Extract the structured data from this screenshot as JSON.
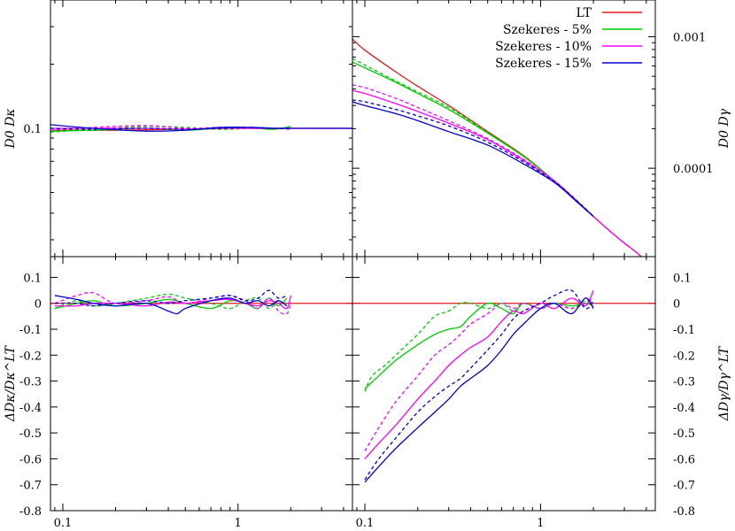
{
  "chart_data": [
    {
      "panel": "top-left",
      "type": "line",
      "ylabel": "D0 Dκ",
      "xscale": "log",
      "yscale": "log",
      "xlim": [
        0.085,
        4.5
      ],
      "ylim": [
        0.025,
        0.4
      ],
      "xticks": [],
      "yticks": [
        "0.1"
      ],
      "series": [
        {
          "name": "LT",
          "style": "solid",
          "color": "#e41a1c",
          "x": [
            0.085,
            0.2,
            0.5,
            1.0,
            2.0,
            4.5
          ],
          "y": [
            0.098,
            0.098,
            0.099,
            0.1,
            0.1,
            0.1
          ]
        },
        {
          "name": "Szekeres - 5%",
          "style": "solid",
          "color": "#00cc00",
          "x": [
            0.085,
            0.15,
            0.3,
            0.5,
            0.8,
            1.2,
            1.6,
            2.0
          ],
          "y": [
            0.097,
            0.098,
            0.1,
            0.098,
            0.1,
            0.1,
            0.099,
            0.102
          ]
        },
        {
          "style": "dashed",
          "color": "#00cc00",
          "x": [
            0.085,
            0.15,
            0.3,
            0.5,
            0.8,
            1.2,
            1.6,
            2.0
          ],
          "y": [
            0.096,
            0.099,
            0.102,
            0.101,
            0.099,
            0.1,
            0.1,
            0.099
          ]
        },
        {
          "name": "Szekeres - 10%",
          "style": "solid",
          "color": "#ff00ff",
          "x": [
            0.085,
            0.15,
            0.3,
            0.5,
            0.8,
            1.2,
            1.6,
            2.0,
            3.0,
            4.5
          ],
          "y": [
            0.1,
            0.1,
            0.1,
            0.099,
            0.1,
            0.1,
            0.1,
            0.1,
            0.1,
            0.1
          ]
        },
        {
          "style": "dashed",
          "color": "#ff00ff",
          "x": [
            0.085,
            0.15,
            0.3,
            0.5,
            0.8,
            1.2,
            1.6,
            2.0
          ],
          "y": [
            0.098,
            0.101,
            0.103,
            0.1,
            0.101,
            0.1,
            0.1,
            0.099
          ]
        },
        {
          "name": "Szekeres - 15%",
          "style": "solid",
          "color": "#0000cc",
          "x": [
            0.085,
            0.15,
            0.3,
            0.5,
            0.8,
            1.2,
            1.6,
            2.0,
            3.0,
            4.5
          ],
          "y": [
            0.104,
            0.1,
            0.097,
            0.098,
            0.101,
            0.101,
            0.1,
            0.1,
            0.1,
            0.1
          ]
        },
        {
          "style": "dashed",
          "color": "#0000cc",
          "x": [
            0.085,
            0.15,
            0.3,
            0.5,
            0.8,
            1.2,
            1.6,
            2.0
          ],
          "y": [
            0.1,
            0.099,
            0.1,
            0.099,
            0.1,
            0.101,
            0.1,
            0.1
          ]
        }
      ]
    },
    {
      "panel": "top-right",
      "type": "line",
      "ylabel": "D0 Dγ",
      "xscale": "log",
      "yscale": "log",
      "xlim": [
        0.085,
        4.5
      ],
      "ylim": [
        2.13e-05,
        0.0019
      ],
      "xticks": [],
      "yticks": [
        "0.001",
        "0.0001"
      ],
      "legend": {
        "position": "top-right",
        "entries": [
          "LT",
          "Szekeres - 5%",
          "Szekeres - 10%",
          "Szekeres - 15%"
        ],
        "colors": [
          "#e41a1c",
          "#00cc00",
          "#ff00ff",
          "#0000cc"
        ]
      },
      "series": [
        {
          "name": "LT",
          "style": "solid",
          "color": "#e41a1c",
          "x": [
            0.085,
            0.1,
            0.15,
            0.2,
            0.3,
            0.5,
            0.8,
            1.2,
            1.6,
            2.0,
            2.5,
            3.0,
            3.5,
            4.0
          ],
          "y": [
            0.00096,
            0.00079,
            0.00054,
            0.00042,
            0.0003,
            0.00019,
            0.000125,
            8e-05,
            5.7e-05,
            4.3e-05,
            3.3e-05,
            2.7e-05,
            2.3e-05,
            1.96e-05
          ]
        },
        {
          "name": "Szekeres - 5%",
          "style": "solid",
          "color": "#00cc00",
          "x": [
            0.085,
            0.1,
            0.15,
            0.2,
            0.3,
            0.5,
            0.8,
            1.2,
            1.6,
            2.0
          ],
          "y": [
            0.00064,
            0.00058,
            0.00045,
            0.00037,
            0.00028,
            0.000185,
            0.000123,
            8e-05,
            5.7e-05,
            4.3e-05
          ]
        },
        {
          "style": "dashed",
          "color": "#00cc00",
          "x": [
            0.085,
            0.1,
            0.15,
            0.2,
            0.3,
            0.5,
            0.8,
            1.2,
            1.6,
            2.0
          ],
          "y": [
            0.00068,
            0.00061,
            0.00046,
            0.00038,
            0.00029,
            0.000187,
            0.000124,
            8e-05,
            5.7e-05,
            4.3e-05
          ]
        },
        {
          "name": "Szekeres - 10%",
          "style": "solid",
          "color": "#ff00ff",
          "x": [
            0.085,
            0.1,
            0.15,
            0.2,
            0.3,
            0.5,
            0.8,
            1.2,
            1.6,
            2.0,
            2.5,
            3.0,
            3.5,
            4.0
          ],
          "y": [
            0.00039,
            0.00037,
            0.00031,
            0.00027,
            0.00022,
            0.000165,
            0.000115,
            8e-05,
            5.7e-05,
            4.3e-05,
            3.3e-05,
            2.7e-05,
            2.3e-05,
            1.96e-05
          ]
        },
        {
          "style": "dashed",
          "color": "#ff00ff",
          "x": [
            0.085,
            0.1,
            0.15,
            0.2,
            0.3,
            0.5,
            0.8,
            1.2,
            1.6,
            2.0
          ],
          "y": [
            0.00043,
            0.00041,
            0.00034,
            0.00029,
            0.00023,
            0.000168,
            0.000117,
            8e-05,
            5.7e-05,
            4.3e-05
          ]
        },
        {
          "name": "Szekeres - 15%",
          "style": "solid",
          "color": "#0000cc",
          "x": [
            0.085,
            0.1,
            0.15,
            0.2,
            0.3,
            0.5,
            0.8,
            1.2,
            1.6,
            2.0
          ],
          "y": [
            0.00032,
            0.0003,
            0.00026,
            0.00023,
            0.00019,
            0.00015,
            0.000108,
            7.8e-05,
            5.6e-05,
            4.3e-05
          ]
        },
        {
          "style": "dashed",
          "color": "#0000cc",
          "x": [
            0.085,
            0.1,
            0.15,
            0.2,
            0.3,
            0.5,
            0.8,
            1.2,
            1.6,
            2.0
          ],
          "y": [
            0.00033,
            0.00032,
            0.00028,
            0.00025,
            0.00021,
            0.000158,
            0.000112,
            7.9e-05,
            5.7e-05,
            4.3e-05
          ]
        }
      ]
    },
    {
      "panel": "bottom-left",
      "type": "line",
      "ylabel": "ΔDκ/Dκ^LT",
      "xscale": "log",
      "yscale": "linear",
      "xlim": [
        0.085,
        4.5
      ],
      "ylim": [
        -0.8,
        0.18
      ],
      "xticks": [
        "0.1",
        "1"
      ],
      "yticks": [
        "0.1",
        "0",
        "-0.1",
        "-0.2",
        "-0.3",
        "-0.4",
        "-0.5",
        "-0.6",
        "-0.7",
        "-0.8"
      ],
      "series": [
        {
          "name": "LT",
          "style": "solid",
          "color": "#e41a1c",
          "x": [
            0.085,
            4.5
          ],
          "y": [
            0,
            0
          ]
        },
        {
          "name": "Szekeres - 5%",
          "style": "solid",
          "color": "#00cc00",
          "x": [
            0.09,
            0.12,
            0.15,
            0.2,
            0.3,
            0.4,
            0.5,
            0.7,
            0.9,
            1.1,
            1.3,
            1.5,
            1.7,
            1.9
          ],
          "y": [
            -0.02,
            0.0,
            0.01,
            -0.01,
            0.0,
            0.015,
            0.0,
            -0.02,
            0.01,
            0.0,
            -0.02,
            0.02,
            -0.01,
            0.02
          ]
        },
        {
          "style": "dashed",
          "color": "#00cc00",
          "x": [
            0.09,
            0.12,
            0.15,
            0.2,
            0.3,
            0.4,
            0.5,
            0.7,
            0.9,
            1.1,
            1.3,
            1.5,
            1.7,
            1.9
          ],
          "y": [
            -0.02,
            0.01,
            -0.01,
            0.0,
            0.02,
            0.035,
            0.02,
            0.0,
            -0.02,
            0.01,
            0.02,
            -0.02,
            0.01,
            -0.01
          ]
        },
        {
          "name": "Szekeres - 10%",
          "style": "solid",
          "color": "#ff00ff",
          "x": [
            0.09,
            0.12,
            0.15,
            0.2,
            0.3,
            0.4,
            0.5,
            0.7,
            0.9,
            1.1,
            1.3,
            1.5,
            1.7,
            1.9,
            2.0
          ],
          "y": [
            -0.01,
            -0.01,
            0.0,
            0.0,
            -0.01,
            0.005,
            0.0,
            0.01,
            0.015,
            0.0,
            -0.01,
            0.01,
            0.0,
            -0.02,
            0.03
          ]
        },
        {
          "style": "dashed",
          "color": "#ff00ff",
          "x": [
            0.09,
            0.12,
            0.15,
            0.2,
            0.3,
            0.4,
            0.5,
            0.7,
            0.9,
            1.1,
            1.3,
            1.5,
            1.7,
            1.9,
            2.0
          ],
          "y": [
            0.0,
            0.03,
            0.04,
            0.0,
            0.01,
            0.025,
            0.0,
            0.02,
            0.03,
            0.01,
            -0.02,
            0.02,
            -0.03,
            -0.04,
            0.0
          ]
        },
        {
          "name": "Szekeres - 15%",
          "style": "solid",
          "color": "#0000cc",
          "x": [
            0.09,
            0.12,
            0.15,
            0.2,
            0.3,
            0.4,
            0.45,
            0.5,
            0.7,
            0.9,
            1.1,
            1.3,
            1.5,
            1.7,
            1.9
          ],
          "y": [
            0.03,
            0.015,
            0.0,
            -0.01,
            0.0,
            -0.03,
            -0.04,
            -0.02,
            0.01,
            0.02,
            0.0,
            0.01,
            -0.01,
            0.01,
            -0.01
          ]
        },
        {
          "style": "dashed",
          "color": "#0000cc",
          "x": [
            0.09,
            0.12,
            0.15,
            0.2,
            0.3,
            0.4,
            0.5,
            0.7,
            0.9,
            1.1,
            1.3,
            1.5,
            1.7,
            1.9
          ],
          "y": [
            0.0,
            0.0,
            -0.01,
            0.0,
            0.01,
            0.0,
            0.01,
            0.02,
            0.03,
            0.01,
            0.02,
            0.05,
            0.02,
            0.03
          ]
        }
      ]
    },
    {
      "panel": "bottom-right",
      "type": "line",
      "ylabel": "ΔDγ/Dγ^LT",
      "xscale": "log",
      "yscale": "linear",
      "xlim": [
        0.085,
        4.5
      ],
      "ylim": [
        -0.8,
        0.18
      ],
      "xticks": [
        "0.1",
        "1"
      ],
      "yticks": [
        "0.1",
        "0",
        "-0.1",
        "-0.2",
        "-0.3",
        "-0.4",
        "-0.5",
        "-0.6",
        "-0.7",
        "-0.8"
      ],
      "series": [
        {
          "name": "LT",
          "style": "solid",
          "color": "#e41a1c",
          "x": [
            0.085,
            4.5
          ],
          "y": [
            0,
            0
          ]
        },
        {
          "name": "Szekeres - 5%",
          "style": "solid",
          "color": "#00cc00",
          "x": [
            0.1,
            0.12,
            0.15,
            0.2,
            0.25,
            0.3,
            0.35,
            0.4,
            0.5,
            0.6,
            0.7,
            0.8,
            1.0,
            1.2,
            1.5,
            1.8,
            2.0
          ],
          "y": [
            -0.33,
            -0.28,
            -0.22,
            -0.16,
            -0.12,
            -0.1,
            -0.09,
            -0.05,
            0.0,
            -0.02,
            -0.04,
            0.0,
            -0.02,
            0.0,
            -0.01,
            0.0,
            -0.01
          ]
        },
        {
          "style": "dashed",
          "color": "#00cc00",
          "x": [
            0.1,
            0.11,
            0.13,
            0.15,
            0.2,
            0.25,
            0.3,
            0.35,
            0.4,
            0.5,
            0.6,
            0.7,
            0.8,
            1.0,
            1.2,
            1.5,
            1.8,
            2.0
          ],
          "y": [
            -0.34,
            -0.28,
            -0.24,
            -0.2,
            -0.12,
            -0.05,
            -0.03,
            0.0,
            0.0,
            -0.02,
            0.0,
            -0.03,
            0.0,
            -0.02,
            0.0,
            -0.02,
            0.01,
            0.0
          ]
        },
        {
          "name": "Szekeres - 10%",
          "style": "solid",
          "color": "#ff00ff",
          "x": [
            0.1,
            0.12,
            0.15,
            0.2,
            0.25,
            0.3,
            0.35,
            0.4,
            0.5,
            0.6,
            0.7,
            0.8,
            1.0,
            1.2,
            1.5,
            1.8,
            2.0
          ],
          "y": [
            -0.6,
            -0.54,
            -0.47,
            -0.37,
            -0.3,
            -0.24,
            -0.2,
            -0.17,
            -0.13,
            -0.07,
            -0.03,
            -0.04,
            0.0,
            -0.02,
            0.02,
            -0.01,
            0.05
          ]
        },
        {
          "style": "dashed",
          "color": "#ff00ff",
          "x": [
            0.1,
            0.12,
            0.15,
            0.2,
            0.25,
            0.3,
            0.35,
            0.4,
            0.5,
            0.6,
            0.7,
            0.8,
            1.0,
            1.2,
            1.5,
            1.8,
            2.0
          ],
          "y": [
            -0.57,
            -0.48,
            -0.38,
            -0.28,
            -0.2,
            -0.16,
            -0.12,
            -0.08,
            -0.04,
            0.0,
            -0.02,
            0.0,
            -0.02,
            0.0,
            -0.02,
            0.0,
            0.02
          ]
        },
        {
          "name": "Szekeres - 15%",
          "style": "solid",
          "color": "#0000cc",
          "x": [
            0.1,
            0.12,
            0.15,
            0.2,
            0.25,
            0.3,
            0.35,
            0.4,
            0.5,
            0.6,
            0.7,
            0.8,
            1.0,
            1.2,
            1.5,
            1.8,
            2.0
          ],
          "y": [
            -0.69,
            -0.63,
            -0.56,
            -0.48,
            -0.42,
            -0.37,
            -0.32,
            -0.29,
            -0.24,
            -0.18,
            -0.12,
            -0.08,
            -0.02,
            0.0,
            -0.04,
            0.02,
            -0.02
          ]
        },
        {
          "style": "dashed",
          "color": "#0000cc",
          "x": [
            0.1,
            0.12,
            0.15,
            0.2,
            0.25,
            0.3,
            0.35,
            0.4,
            0.5,
            0.6,
            0.7,
            0.8,
            1.0,
            1.2,
            1.5,
            1.8,
            2.0
          ],
          "y": [
            -0.68,
            -0.6,
            -0.52,
            -0.42,
            -0.36,
            -0.32,
            -0.29,
            -0.25,
            -0.18,
            -0.12,
            -0.06,
            -0.03,
            0.0,
            0.03,
            0.05,
            -0.02,
            0.01
          ]
        }
      ]
    }
  ]
}
